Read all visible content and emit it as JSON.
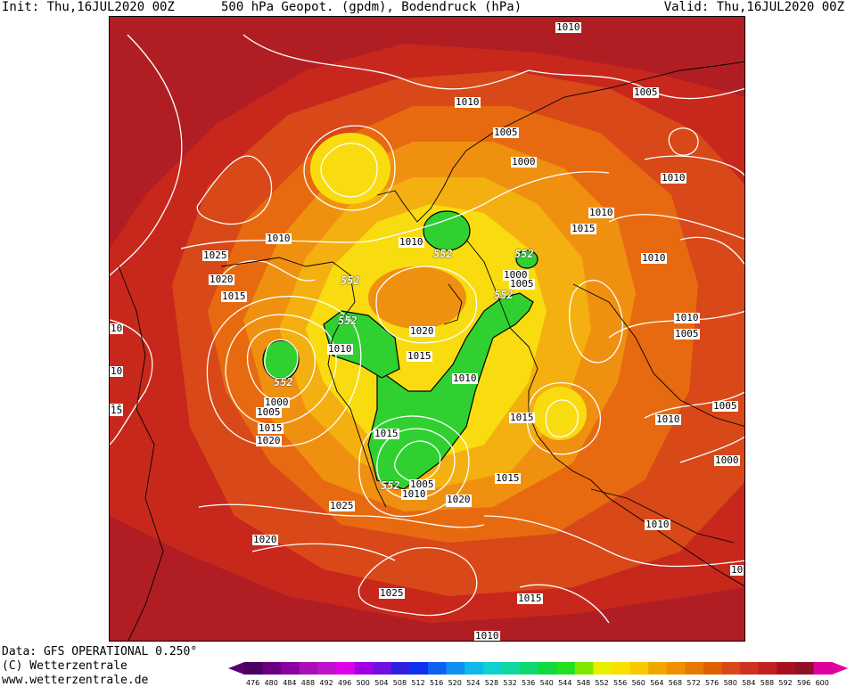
{
  "header": {
    "init": "Init: Thu,16JUL2020 00Z",
    "title": "500 hPa Geopot. (gpdm), Bodendruck (hPa)",
    "valid": "Valid: Thu,16JUL2020 00Z"
  },
  "footer": {
    "data_line": "Data: GFS OPERATIONAL 0.250°",
    "copyright": "(C) Wetterzentrale",
    "url": "www.wetterzentrale.de"
  },
  "isobar_labels": [
    "1010",
    "1010",
    "1005",
    "1005",
    "1000",
    "1010",
    "1010",
    "1015",
    "1010",
    "1025",
    "1020",
    "1015",
    "1010",
    "1020",
    "1015",
    "1010",
    "1010",
    "1010",
    "1000",
    "1005",
    "1015",
    "1020",
    "1015",
    "1005",
    "1005",
    "1010",
    "1025",
    "1020",
    "1015",
    "1020",
    "1000",
    "1010",
    "1015",
    "1010",
    "1025",
    "1020",
    "1015",
    "1010",
    "1010",
    "10",
    "10",
    "10",
    "15",
    "1005",
    "1000",
    "1005",
    "10"
  ],
  "geopotential_labels": [
    "552",
    "552",
    "552",
    "552",
    "552",
    "552",
    "552"
  ],
  "colorbar": {
    "ticks": [
      "476",
      "480",
      "484",
      "488",
      "492",
      "496",
      "500",
      "504",
      "508",
      "512",
      "516",
      "520",
      "524",
      "528",
      "532",
      "536",
      "540",
      "544",
      "548",
      "552",
      "556",
      "560",
      "564",
      "568",
      "572",
      "576",
      "580",
      "584",
      "588",
      "592",
      "596",
      "600"
    ],
    "colors": [
      "#4a0060",
      "#6a0080",
      "#8a00a0",
      "#aa10b8",
      "#c010d0",
      "#e000e8",
      "#a000e0",
      "#7010e0",
      "#3020e0",
      "#1030f0",
      "#1060f0",
      "#1090f0",
      "#10b8e8",
      "#10d0d0",
      "#10d8a0",
      "#10d870",
      "#10d840",
      "#20e020",
      "#80e800",
      "#e8f000",
      "#f8e000",
      "#f8c800",
      "#f0a800",
      "#f09000",
      "#e87800",
      "#e06000",
      "#d84818",
      "#d03020",
      "#c02020",
      "#a81020",
      "#901028",
      "#e000a0"
    ]
  },
  "fill_colors": {
    "darkred": "#b01e24",
    "red": "#c8281c",
    "orangered": "#d84818",
    "orange": "#e86a10",
    "lightorange": "#f09010",
    "amber": "#f4b010",
    "yellow": "#f8dc10",
    "lightyellow": "#eaf010",
    "green": "#30d030"
  }
}
